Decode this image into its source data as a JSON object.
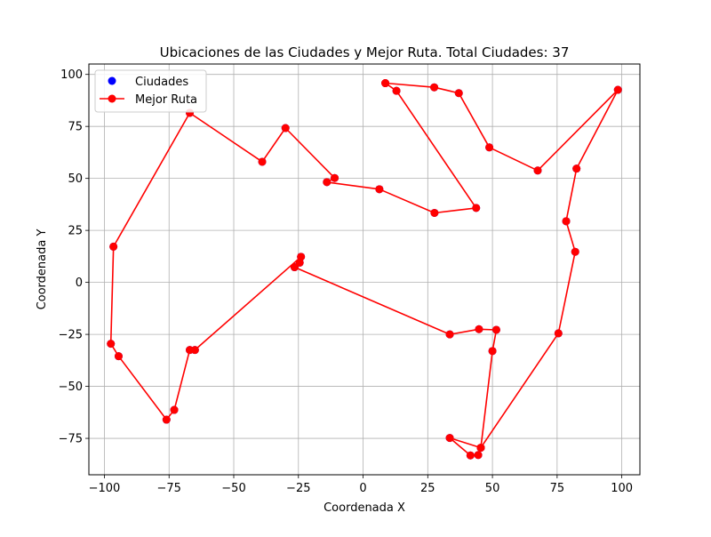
{
  "chart_data": {
    "type": "line",
    "title": "Ubicaciones de las Ciudades y Mejor Ruta. Total Ciudades: 37",
    "xlabel": "Coordenada X",
    "ylabel": "Coordenada Y",
    "xlim": [
      -106,
      107
    ],
    "ylim": [
      -92.5,
      105
    ],
    "xticks": [
      -100,
      -75,
      -50,
      -25,
      0,
      25,
      50,
      75,
      100
    ],
    "yticks": [
      -75,
      -50,
      -25,
      0,
      25,
      50,
      75,
      100
    ],
    "grid": true,
    "legend_position": "upper left",
    "legend": [
      {
        "label": "Ciudades",
        "kind": "marker",
        "color": "#0000ff"
      },
      {
        "label": "Mejor Ruta",
        "kind": "line-marker",
        "color": "#ff0000"
      }
    ],
    "series": [
      {
        "name": "Ciudades",
        "style": "points",
        "color": "#0000ff",
        "points": [
          [
            8.6,
            95.8
          ],
          [
            12.9,
            92.1
          ],
          [
            43.7,
            35.8
          ],
          [
            27.6,
            33.4
          ],
          [
            6.3,
            44.8
          ],
          [
            -14,
            48.2
          ],
          [
            -11,
            50.2
          ],
          [
            -30,
            74.2
          ],
          [
            -39,
            58
          ],
          [
            -67,
            81.5
          ],
          [
            -96.5,
            17.2
          ],
          [
            -97.5,
            -29.5
          ],
          [
            -94.5,
            -35.5
          ],
          [
            -76,
            -66
          ],
          [
            -73,
            -61.3
          ],
          [
            -67,
            -32.5
          ],
          [
            -65,
            -32.5
          ],
          [
            -24,
            12.3
          ],
          [
            -24.5,
            9.5
          ],
          [
            -26.5,
            7.3
          ],
          [
            33.5,
            -25
          ],
          [
            44.8,
            -22.5
          ],
          [
            51.5,
            -22.8
          ],
          [
            50,
            -33
          ],
          [
            45.5,
            -79.5
          ],
          [
            44.5,
            -83
          ],
          [
            41.5,
            -83.2
          ],
          [
            33.5,
            -74.8
          ],
          [
            75.5,
            -24.5
          ],
          [
            82,
            14.7
          ],
          [
            78.5,
            29.4
          ],
          [
            82.5,
            54.7
          ],
          [
            98.5,
            92.6
          ],
          [
            67.5,
            53.8
          ],
          [
            48.8,
            64.9
          ],
          [
            37,
            91
          ],
          [
            27.5,
            93.8
          ]
        ]
      },
      {
        "name": "Mejor Ruta",
        "style": "line-markers",
        "color": "#ff0000",
        "points": [
          [
            8.6,
            95.8
          ],
          [
            12.9,
            92.1
          ],
          [
            43.7,
            35.8
          ],
          [
            27.6,
            33.4
          ],
          [
            6.3,
            44.8
          ],
          [
            -14,
            48.2
          ],
          [
            -11,
            50.2
          ],
          [
            -30,
            74.2
          ],
          [
            -39,
            58
          ],
          [
            -67,
            81.5
          ],
          [
            -96.5,
            17.2
          ],
          [
            -97.5,
            -29.5
          ],
          [
            -94.5,
            -35.5
          ],
          [
            -76,
            -66
          ],
          [
            -73,
            -61.3
          ],
          [
            -67,
            -32.5
          ],
          [
            -65,
            -32.5
          ],
          [
            -24,
            12.3
          ],
          [
            -24.5,
            9.5
          ],
          [
            -26.5,
            7.3
          ],
          [
            33.5,
            -25
          ],
          [
            44.8,
            -22.5
          ],
          [
            51.5,
            -22.8
          ],
          [
            50,
            -33
          ],
          [
            45.5,
            -79.5
          ],
          [
            44.5,
            -83
          ],
          [
            41.5,
            -83.2
          ],
          [
            33.5,
            -74.8
          ],
          [
            45.5,
            -79.5
          ],
          [
            75.5,
            -24.5
          ],
          [
            82,
            14.7
          ],
          [
            78.5,
            29.4
          ],
          [
            82.5,
            54.7
          ],
          [
            98.5,
            92.6
          ],
          [
            67.5,
            53.8
          ],
          [
            48.8,
            64.9
          ],
          [
            37,
            91
          ],
          [
            27.5,
            93.8
          ],
          [
            8.6,
            95.8
          ]
        ]
      }
    ]
  }
}
